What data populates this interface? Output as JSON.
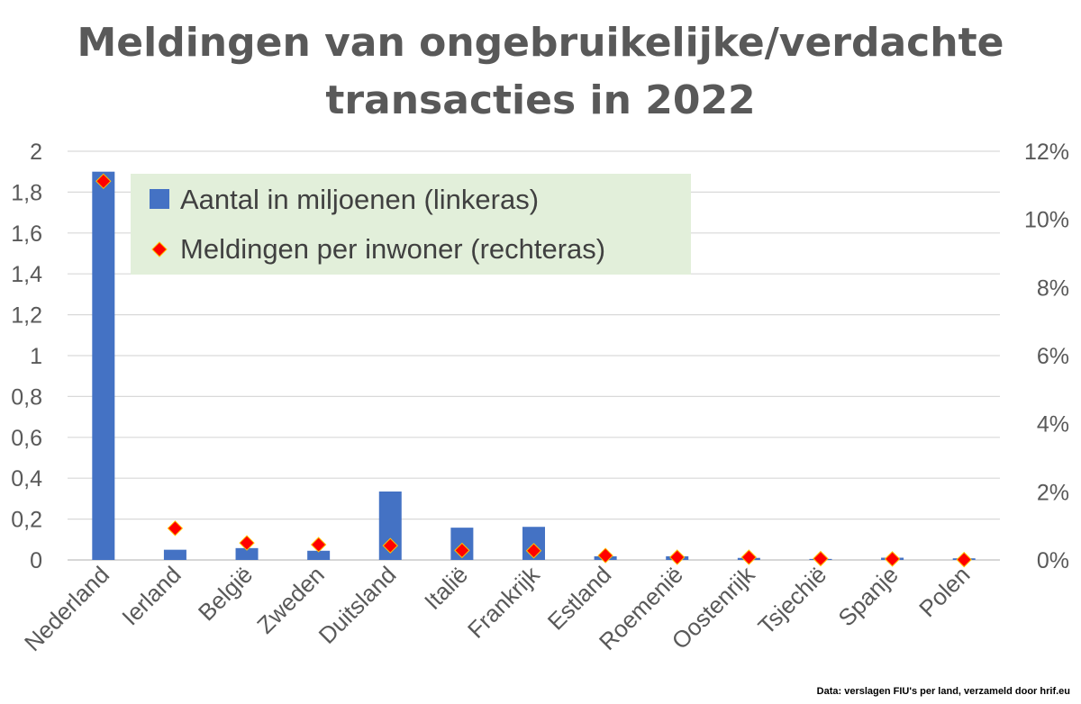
{
  "chart_data": {
    "type": "bar",
    "title_lines": [
      "Meldingen van ongebruikelijke/verdachte",
      "transacties in 2022"
    ],
    "categories": [
      "Nederland",
      "Ierland",
      "België",
      "Zweden",
      "Duitsland",
      "Italië",
      "Frankrijk",
      "Estland",
      "Roemenië",
      "Oostenrijk",
      "Tsjechië",
      "Spanje",
      "Polen"
    ],
    "series": [
      {
        "name": "Aantal in miljoenen (linkeras)",
        "type": "bar",
        "axis": "left",
        "color": "#4472c4",
        "values": [
          1.9,
          0.05,
          0.058,
          0.045,
          0.335,
          0.158,
          0.162,
          0.018,
          0.018,
          0.01,
          0.005,
          0.011,
          0.008
        ]
      },
      {
        "name": "Meldingen per inwoner (rechteras)",
        "type": "scatter",
        "axis": "right",
        "color": "#ff0000",
        "marker_edge": "#ffc000",
        "values": [
          0.1112,
          0.0093,
          0.005,
          0.0045,
          0.0042,
          0.0028,
          0.0027,
          0.0013,
          0.0008,
          0.0008,
          0.0004,
          0.0003,
          0.0001
        ]
      }
    ],
    "left_axis": {
      "ylim": [
        0,
        2
      ],
      "ticks": [
        0,
        0.2,
        0.4,
        0.6,
        0.8,
        1,
        1.2,
        1.4,
        1.6,
        1.8,
        2
      ],
      "tick_labels": [
        "0",
        "0,2",
        "0,4",
        "0,6",
        "0,8",
        "1",
        "1,2",
        "1,4",
        "1,6",
        "1,8",
        "2"
      ]
    },
    "right_axis": {
      "ylim": [
        0,
        0.12
      ],
      "ticks": [
        0,
        0.02,
        0.04,
        0.06,
        0.08,
        0.1,
        0.12
      ],
      "tick_labels": [
        "0%",
        "2%",
        "4%",
        "6%",
        "8%",
        "10%",
        "12%"
      ]
    },
    "grid": true,
    "legend": {
      "placement": "top-left",
      "background": "#e2efda"
    },
    "source": "Data: verslagen FIU's per land, verzameld door hrif.eu"
  }
}
